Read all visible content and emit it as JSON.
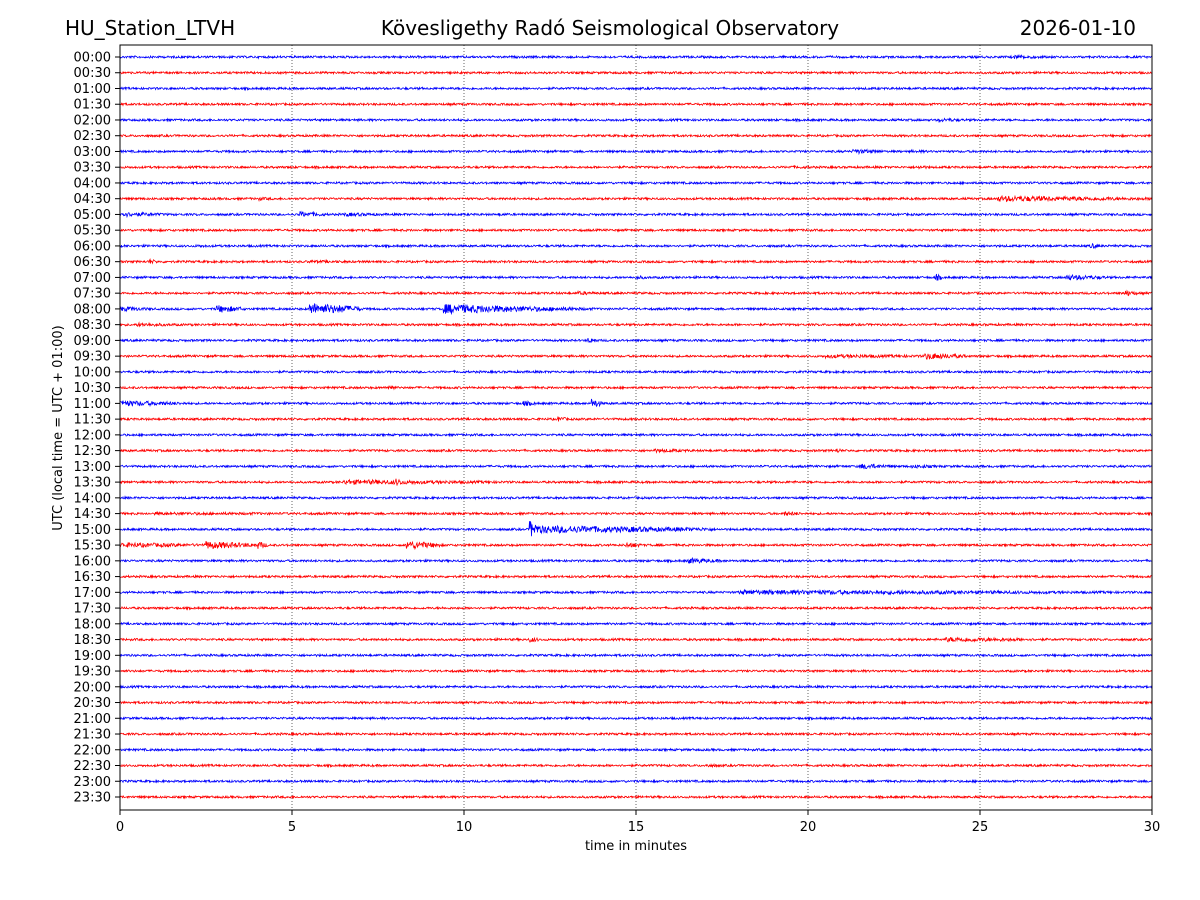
{
  "header": {
    "station": "HU_Station_LTVH",
    "title": "Kövesligethy Radó Seismological Observatory",
    "date": "2026-01-10"
  },
  "chart_data": {
    "type": "line",
    "subtype": "helicorder",
    "xlabel": "time in minutes",
    "ylabel": "UTC (local time = UTC + 01:00)",
    "xlim": [
      0,
      30
    ],
    "xticks": [
      "0",
      "5",
      "10",
      "15",
      "20",
      "25",
      "30"
    ],
    "grid": "vertical dotted at x ticks",
    "colors": [
      "#0000ff",
      "#ff0000"
    ],
    "rows": [
      "00:00",
      "00:30",
      "01:00",
      "01:30",
      "02:00",
      "02:30",
      "03:00",
      "03:30",
      "04:00",
      "04:30",
      "05:00",
      "05:30",
      "06:00",
      "06:30",
      "07:00",
      "07:30",
      "08:00",
      "08:30",
      "09:00",
      "09:30",
      "10:00",
      "10:30",
      "11:00",
      "11:30",
      "12:00",
      "12:30",
      "13:00",
      "13:30",
      "14:00",
      "14:30",
      "15:00",
      "15:30",
      "16:00",
      "16:30",
      "17:00",
      "17:30",
      "18:00",
      "18:30",
      "19:00",
      "19:30",
      "20:00",
      "20:30",
      "21:00",
      "21:30",
      "22:00",
      "22:30",
      "23:00",
      "23:30"
    ],
    "events": [
      [
        0,
        26,
        1.2,
        2
      ],
      [
        4,
        23.8,
        1,
        2
      ],
      [
        4,
        27,
        0.5,
        1.5
      ],
      [
        6,
        21.3,
        1,
        2.5
      ],
      [
        6,
        23,
        1.2,
        1.5
      ],
      [
        7,
        19.5,
        1.5,
        1.5
      ],
      [
        7,
        23.2,
        0.5,
        2
      ],
      [
        9,
        4,
        0.5,
        2
      ],
      [
        9,
        25.5,
        4.5,
        3
      ],
      [
        10,
        0,
        1.5,
        2.5
      ],
      [
        10,
        5.2,
        0.8,
        3
      ],
      [
        10,
        6.5,
        1.5,
        2
      ],
      [
        10,
        11,
        0.6,
        1.5
      ],
      [
        12,
        28.2,
        0.3,
        3
      ],
      [
        12,
        2.2,
        0.8,
        1.5
      ],
      [
        13,
        0.8,
        0.3,
        3
      ],
      [
        13,
        5.5,
        2.5,
        1.5
      ],
      [
        14,
        15,
        0.5,
        2
      ],
      [
        14,
        23.7,
        0.2,
        4
      ],
      [
        14,
        27.5,
        1.2,
        3
      ],
      [
        15,
        13.3,
        0.8,
        2
      ],
      [
        15,
        29.2,
        0.4,
        3
      ],
      [
        16,
        0,
        1,
        2.5
      ],
      [
        16,
        2.8,
        0.8,
        4
      ],
      [
        16,
        5.5,
        1.5,
        6
      ],
      [
        16,
        9.4,
        3,
        5
      ],
      [
        16,
        12,
        2,
        2.5
      ],
      [
        17,
        0.5,
        1.5,
        2
      ],
      [
        18,
        13.6,
        0.3,
        3
      ],
      [
        19,
        20.5,
        4,
        2
      ],
      [
        19,
        23.4,
        1.2,
        3.5
      ],
      [
        21,
        7.8,
        0.2,
        4
      ],
      [
        22,
        0,
        2,
        3
      ],
      [
        22,
        11.7,
        0.4,
        3
      ],
      [
        22,
        13.7,
        0.3,
        5
      ],
      [
        23,
        12.7,
        0.3,
        3
      ],
      [
        25,
        15.5,
        1.5,
        2
      ],
      [
        25,
        20.8,
        0.2,
        3
      ],
      [
        26,
        21.5,
        1,
        3
      ],
      [
        26,
        23,
        1,
        2
      ],
      [
        27,
        6.5,
        5,
        2.5
      ],
      [
        27,
        8,
        0.3,
        4
      ],
      [
        29,
        1,
        10,
        1.5
      ],
      [
        29,
        19.3,
        0.6,
        2.5
      ],
      [
        30,
        11.9,
        0.3,
        9
      ],
      [
        30,
        12.2,
        5,
        4
      ],
      [
        31,
        0,
        3,
        2.5
      ],
      [
        31,
        2.5,
        1.5,
        4
      ],
      [
        31,
        4,
        0.3,
        4
      ],
      [
        31,
        8.3,
        1,
        4.5
      ],
      [
        31,
        14.7,
        0.5,
        3
      ],
      [
        32,
        16.5,
        1,
        3
      ],
      [
        34,
        18,
        12,
        2.5
      ],
      [
        37,
        11.9,
        0.3,
        3
      ],
      [
        37,
        24,
        3,
        2.5
      ],
      [
        45,
        17,
        0.6,
        2
      ]
    ]
  }
}
